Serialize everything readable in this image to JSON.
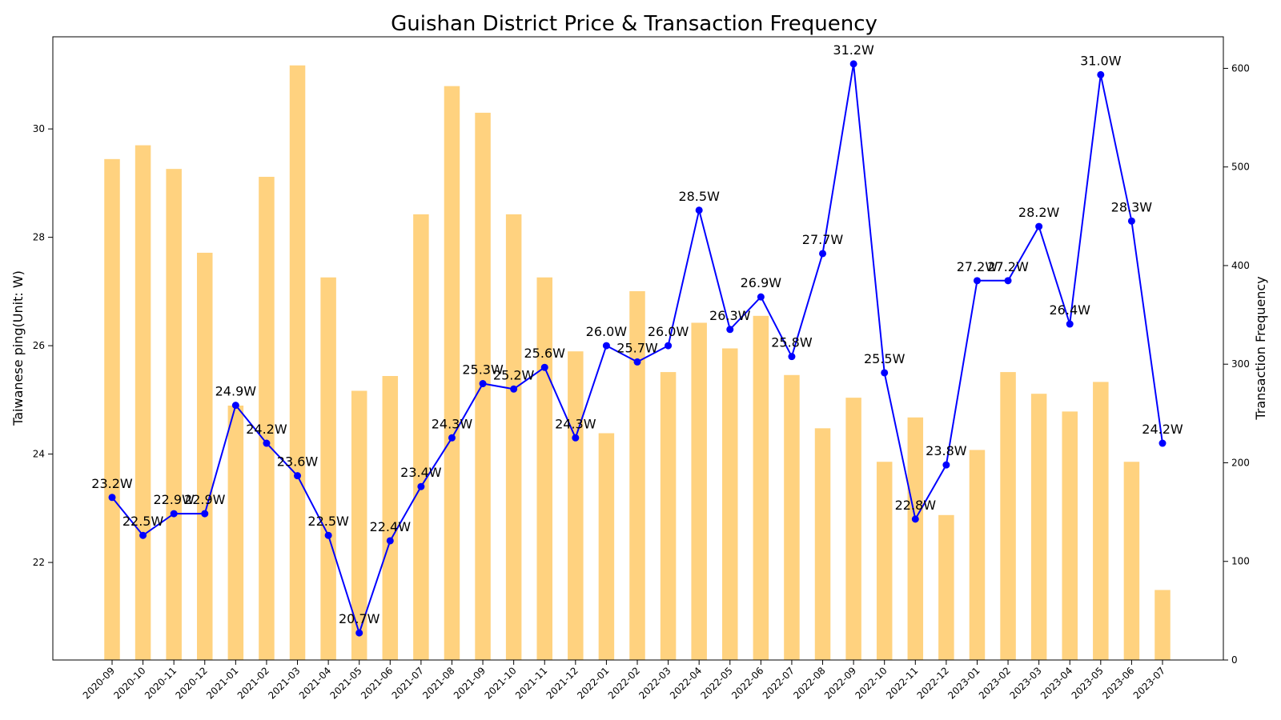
{
  "chart_data": {
    "type": "bar+line",
    "title": "Guishan District Price & Transaction Frequency",
    "x_labels": [
      "2020-09",
      "2020-10",
      "2020-11",
      "2020-12",
      "2021-01",
      "2021-02",
      "2021-03",
      "2021-04",
      "2021-05",
      "2021-06",
      "2021-07",
      "2021-08",
      "2021-09",
      "2021-10",
      "2021-11",
      "2021-12",
      "2022-01",
      "2022-02",
      "2022-03",
      "2022-04",
      "2022-05",
      "2022-06",
      "2022-07",
      "2022-08",
      "2022-09",
      "2022-10",
      "2022-11",
      "2022-12",
      "2023-01",
      "2023-02",
      "2023-03",
      "2023-04",
      "2023-05",
      "2023-06",
      "2023-07"
    ],
    "price": {
      "axis_label": "Taiwanese ping(Unit: W)",
      "values": [
        23.2,
        22.5,
        22.9,
        22.9,
        24.9,
        24.2,
        23.6,
        22.5,
        20.7,
        22.4,
        23.4,
        24.3,
        25.3,
        25.2,
        25.6,
        24.3,
        26.0,
        25.7,
        26.0,
        28.5,
        26.3,
        26.9,
        25.8,
        27.7,
        31.2,
        25.5,
        22.8,
        23.8,
        27.2,
        27.2,
        28.2,
        26.4,
        31.0,
        28.3,
        24.2
      ],
      "labels": [
        "23.2W",
        "22.5W",
        "22.9W",
        "22.9W",
        "24.9W",
        "24.2W",
        "23.6W",
        "22.5W",
        "20.7W",
        "22.4W",
        "23.4W",
        "24.3W",
        "25.3W",
        "25.2W",
        "25.6W",
        "24.3W",
        "26.0W",
        "25.7W",
        "26.0W",
        "28.5W",
        "26.3W",
        "26.9W",
        "25.8W",
        "27.7W",
        "31.2W",
        "25.5W",
        "22.8W",
        "23.8W",
        "27.2W",
        "27.2W",
        "28.2W",
        "26.4W",
        "31.0W",
        "28.3W",
        "24.2W"
      ],
      "color": "#0000ff",
      "ticks": [
        "22",
        "24",
        "26",
        "28",
        "30"
      ],
      "ylim": [
        20.2,
        31.7
      ]
    },
    "frequency": {
      "axis_label": "Transaction Frequency",
      "values": [
        508,
        522,
        498,
        413,
        258,
        490,
        603,
        388,
        273,
        288,
        452,
        582,
        555,
        452,
        388,
        313,
        230,
        374,
        292,
        342,
        316,
        349,
        289,
        235,
        266,
        201,
        246,
        147,
        213,
        292,
        270,
        252,
        282,
        201,
        71
      ],
      "color": "#ffd27f",
      "ticks": [
        "0",
        "100",
        "200",
        "300",
        "400",
        "500",
        "600"
      ],
      "ylim": [
        0,
        632
      ]
    }
  }
}
